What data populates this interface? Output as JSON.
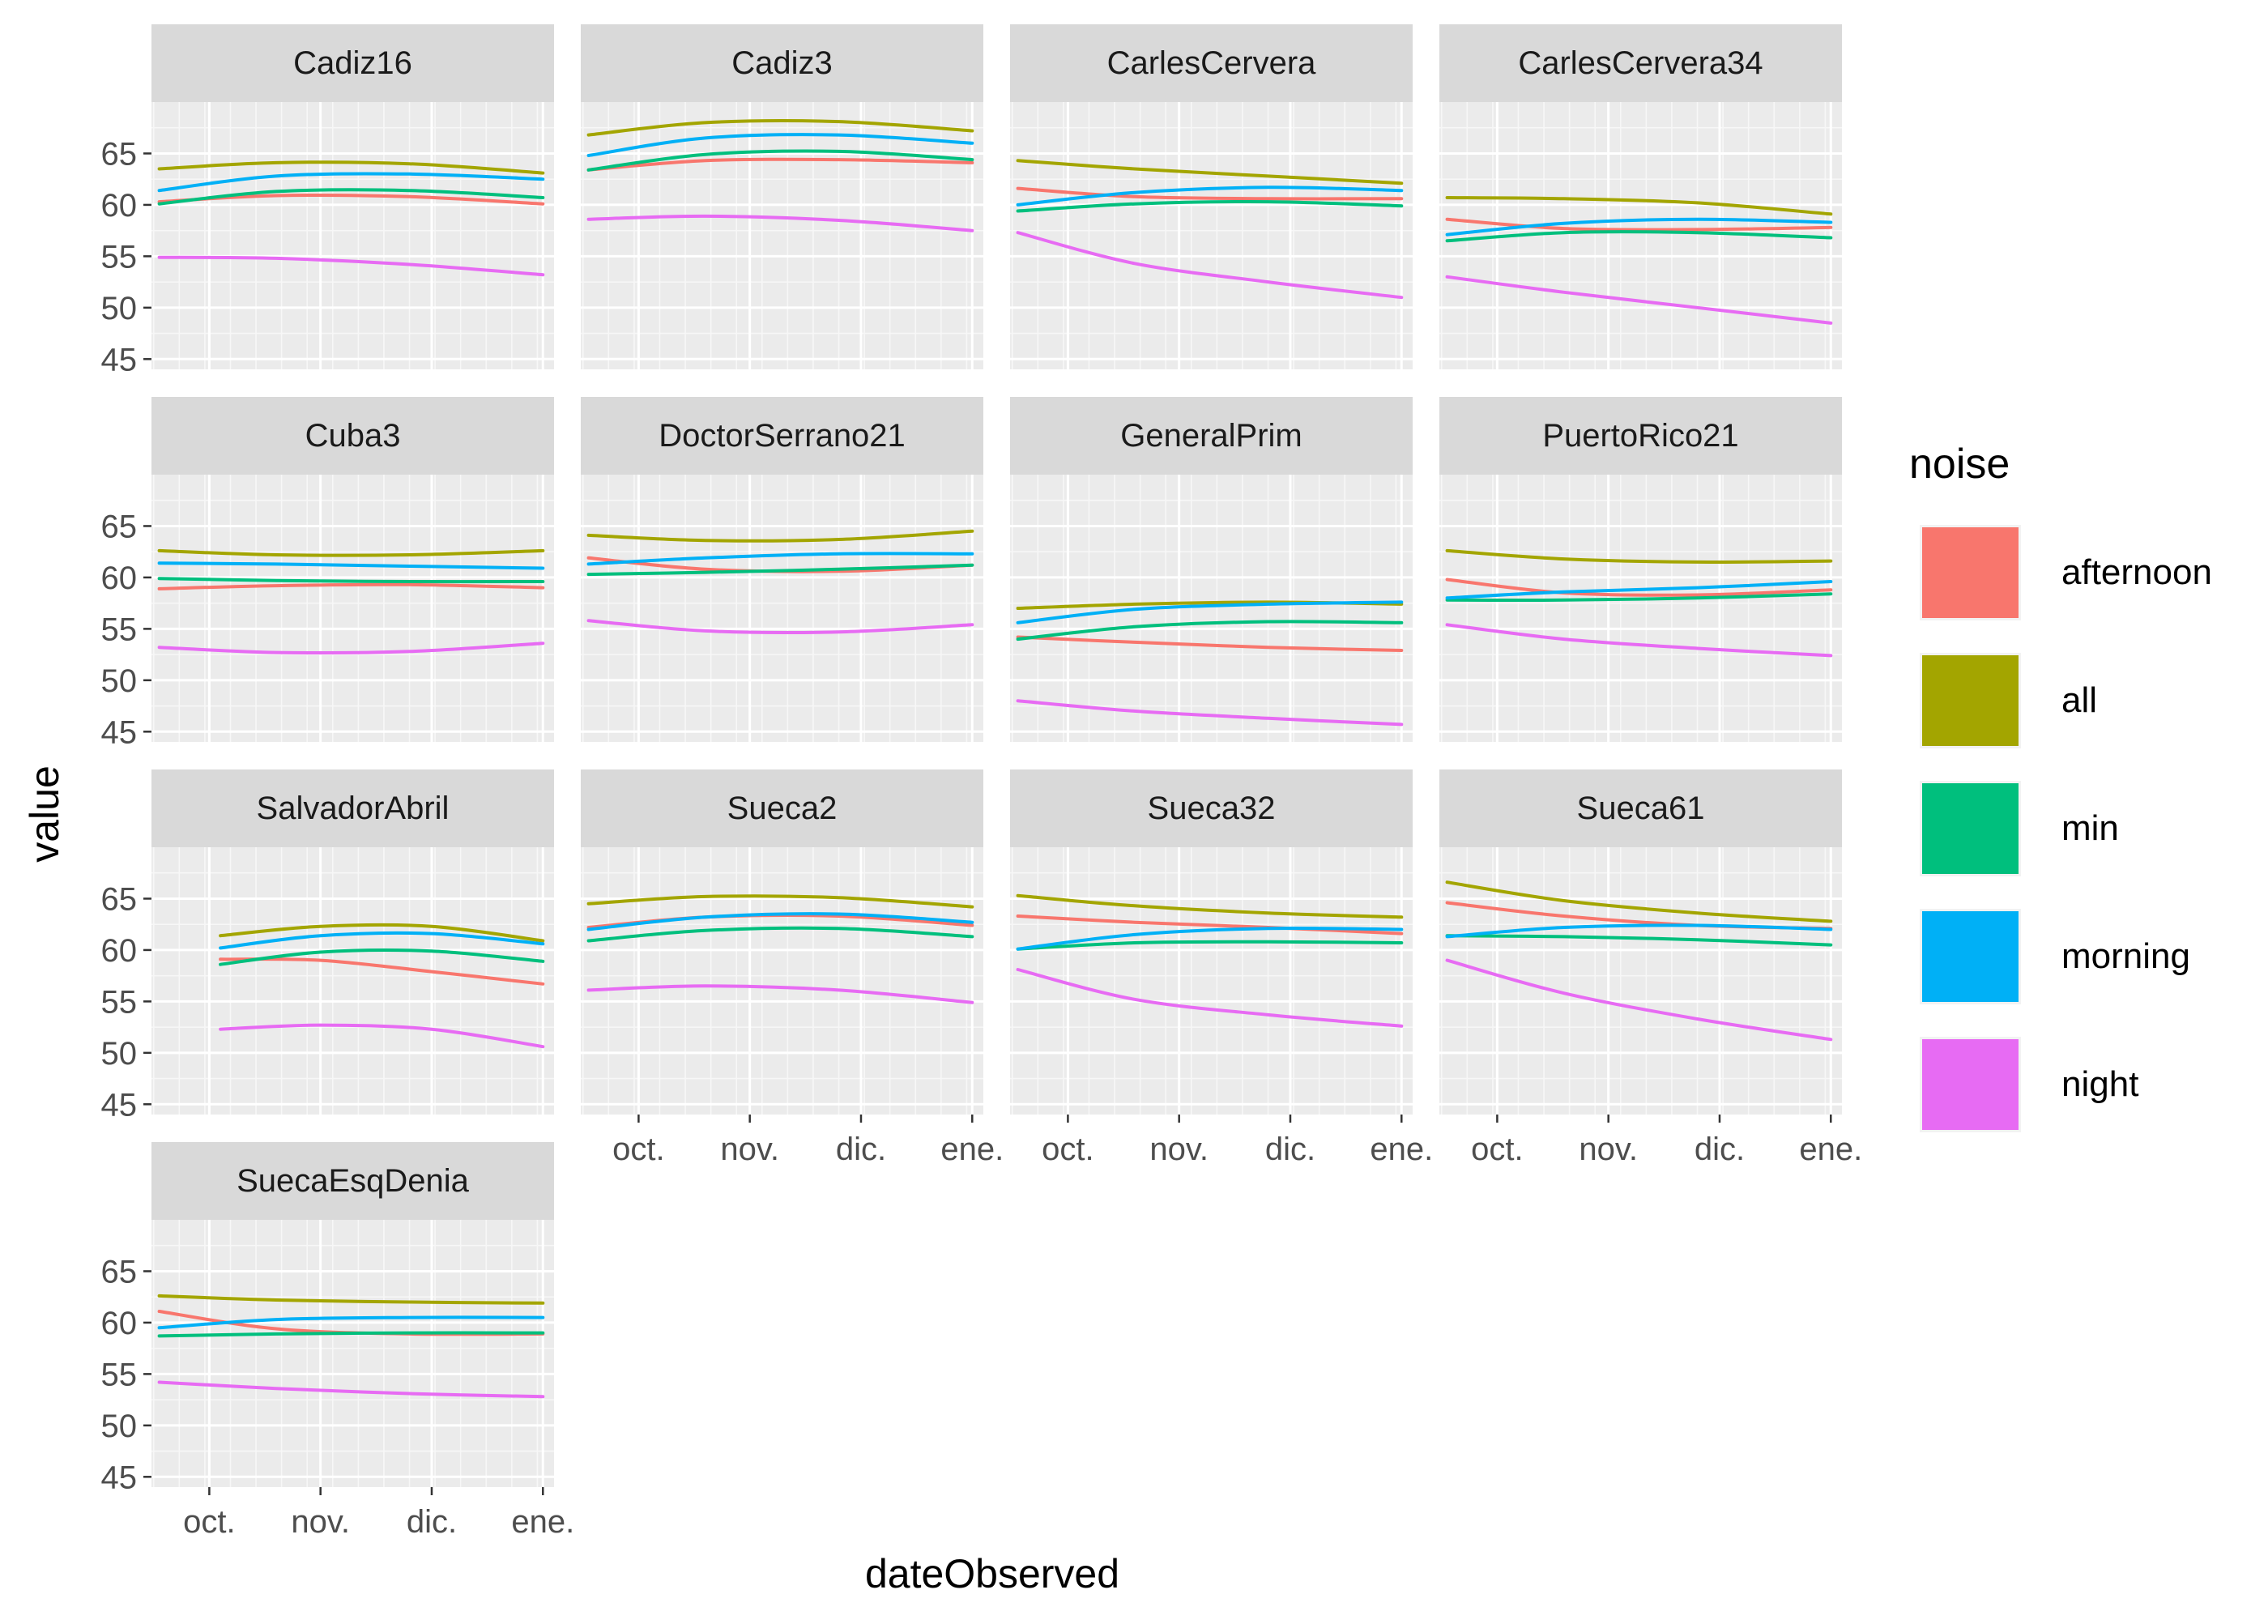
{
  "chart_data": {
    "type": "line",
    "facet_by": "station",
    "xlabel": "dateObserved",
    "ylabel": "value",
    "legend_title": "noise",
    "legend_position": "right",
    "grid": true,
    "x_ticks": [
      "oct.",
      "nov.",
      "dic.",
      "ene."
    ],
    "x_tick_positions": [
      1,
      2,
      3,
      4
    ],
    "xlim": [
      0.48,
      4.1
    ],
    "ylim": [
      44,
      70
    ],
    "y_ticks": [
      45,
      50,
      55,
      60,
      65
    ],
    "series_colors": {
      "afternoon": "#F8766D",
      "all": "#A3A500",
      "min": "#00BF7D",
      "morning": "#00B0F6",
      "night": "#E76BF3"
    },
    "series_order": [
      "afternoon",
      "all",
      "min",
      "morning",
      "night"
    ],
    "panels": [
      {
        "name": "Cadiz16",
        "x": [
          0.55,
          1.6,
          2.8,
          4.0
        ],
        "series": {
          "afternoon": [
            60.3,
            60.9,
            60.8,
            60.1
          ],
          "all": [
            63.5,
            64.1,
            64.0,
            63.1
          ],
          "min": [
            60.1,
            61.3,
            61.4,
            60.7
          ],
          "morning": [
            61.4,
            62.8,
            63.0,
            62.5
          ],
          "night": [
            54.9,
            54.8,
            54.2,
            53.2
          ]
        }
      },
      {
        "name": "Cadiz3",
        "x": [
          0.55,
          1.6,
          2.8,
          4.0
        ],
        "series": {
          "afternoon": [
            63.4,
            64.3,
            64.4,
            64.1
          ],
          "all": [
            66.8,
            68.0,
            68.1,
            67.2
          ],
          "min": [
            63.4,
            64.9,
            65.2,
            64.4
          ],
          "morning": [
            64.8,
            66.5,
            66.8,
            66.0
          ],
          "night": [
            58.6,
            58.9,
            58.5,
            57.5
          ]
        }
      },
      {
        "name": "CarlesCervera",
        "x": [
          0.55,
          1.6,
          2.8,
          4.0
        ],
        "series": {
          "afternoon": [
            61.6,
            60.8,
            60.6,
            60.6
          ],
          "all": [
            64.3,
            63.5,
            62.8,
            62.1
          ],
          "min": [
            59.4,
            60.1,
            60.3,
            59.9
          ],
          "morning": [
            60.0,
            61.2,
            61.7,
            61.4
          ],
          "night": [
            57.3,
            54.3,
            52.5,
            51.0
          ]
        }
      },
      {
        "name": "CarlesCervera34",
        "x": [
          0.55,
          1.6,
          2.8,
          4.0
        ],
        "series": {
          "afternoon": [
            58.6,
            57.7,
            57.6,
            57.8
          ],
          "all": [
            60.7,
            60.6,
            60.2,
            59.1
          ],
          "min": [
            56.5,
            57.3,
            57.3,
            56.8
          ],
          "morning": [
            57.1,
            58.2,
            58.6,
            58.3
          ],
          "night": [
            53.0,
            51.5,
            50.0,
            48.5
          ]
        }
      },
      {
        "name": "Cuba3",
        "x": [
          0.55,
          1.6,
          2.8,
          4.0
        ],
        "series": {
          "afternoon": [
            58.9,
            59.2,
            59.3,
            59.0
          ],
          "all": [
            62.6,
            62.2,
            62.2,
            62.6
          ],
          "min": [
            59.9,
            59.7,
            59.6,
            59.6
          ],
          "morning": [
            61.4,
            61.3,
            61.1,
            60.9
          ],
          "night": [
            53.2,
            52.7,
            52.8,
            53.6
          ]
        }
      },
      {
        "name": "DoctorSerrano21",
        "x": [
          0.55,
          1.6,
          2.8,
          4.0
        ],
        "series": {
          "afternoon": [
            61.9,
            60.8,
            60.6,
            61.2
          ],
          "all": [
            64.1,
            63.6,
            63.7,
            64.5
          ],
          "min": [
            60.3,
            60.5,
            60.8,
            61.2
          ],
          "morning": [
            61.3,
            61.9,
            62.3,
            62.3
          ],
          "night": [
            55.8,
            54.8,
            54.7,
            55.4
          ]
        }
      },
      {
        "name": "GeneralPrim",
        "x": [
          0.55,
          1.6,
          2.8,
          4.0
        ],
        "series": {
          "afternoon": [
            54.2,
            53.7,
            53.2,
            52.9
          ],
          "all": [
            57.0,
            57.4,
            57.6,
            57.4
          ],
          "min": [
            54.0,
            55.2,
            55.7,
            55.6
          ],
          "morning": [
            55.6,
            56.9,
            57.4,
            57.6
          ],
          "night": [
            48.0,
            47.0,
            46.3,
            45.7
          ]
        }
      },
      {
        "name": "PuertoRico21",
        "x": [
          0.55,
          1.6,
          2.8,
          4.0
        ],
        "series": {
          "afternoon": [
            59.8,
            58.5,
            58.3,
            58.8
          ],
          "all": [
            62.6,
            61.8,
            61.5,
            61.6
          ],
          "min": [
            57.8,
            57.8,
            58.0,
            58.4
          ],
          "morning": [
            58.0,
            58.6,
            59.0,
            59.6
          ],
          "night": [
            55.4,
            54.0,
            53.1,
            52.4
          ]
        }
      },
      {
        "name": "SalvadorAbril",
        "x": [
          1.1,
          2.0,
          3.0,
          4.0
        ],
        "series": {
          "afternoon": [
            59.1,
            59.0,
            57.9,
            56.7
          ],
          "all": [
            61.4,
            62.3,
            62.3,
            60.9
          ],
          "min": [
            58.6,
            59.8,
            59.9,
            58.9
          ],
          "morning": [
            60.2,
            61.4,
            61.6,
            60.6
          ],
          "night": [
            52.3,
            52.7,
            52.3,
            50.6
          ]
        }
      },
      {
        "name": "Sueca2",
        "x": [
          0.55,
          1.6,
          2.8,
          4.0
        ],
        "series": {
          "afternoon": [
            62.2,
            63.2,
            63.3,
            62.4
          ],
          "all": [
            64.5,
            65.2,
            65.1,
            64.2
          ],
          "min": [
            60.9,
            61.9,
            62.1,
            61.3
          ],
          "morning": [
            62.0,
            63.2,
            63.5,
            62.7
          ],
          "night": [
            56.1,
            56.5,
            56.1,
            54.9
          ]
        }
      },
      {
        "name": "Sueca32",
        "x": [
          0.55,
          1.6,
          2.8,
          4.0
        ],
        "series": {
          "afternoon": [
            63.3,
            62.7,
            62.2,
            61.6
          ],
          "all": [
            65.3,
            64.3,
            63.6,
            63.2
          ],
          "min": [
            60.1,
            60.7,
            60.8,
            60.7
          ],
          "morning": [
            60.1,
            61.5,
            62.1,
            62.0
          ],
          "night": [
            58.1,
            55.2,
            53.7,
            52.6
          ]
        }
      },
      {
        "name": "Sueca61",
        "x": [
          0.55,
          1.6,
          2.8,
          4.0
        ],
        "series": {
          "afternoon": [
            64.6,
            63.3,
            62.4,
            62.1
          ],
          "all": [
            66.6,
            64.8,
            63.6,
            62.8
          ],
          "min": [
            61.4,
            61.3,
            61.0,
            60.5
          ],
          "morning": [
            61.3,
            62.2,
            62.4,
            62.0
          ],
          "night": [
            59.0,
            55.8,
            53.3,
            51.3
          ]
        }
      },
      {
        "name": "SuecaEsqDenia",
        "x": [
          0.55,
          1.6,
          2.8,
          4.0
        ],
        "series": {
          "afternoon": [
            61.1,
            59.4,
            58.9,
            58.9
          ],
          "all": [
            62.6,
            62.2,
            62.0,
            61.9
          ],
          "min": [
            58.7,
            58.9,
            59.0,
            59.0
          ],
          "morning": [
            59.5,
            60.3,
            60.5,
            60.5
          ],
          "night": [
            54.2,
            53.6,
            53.1,
            52.8
          ]
        }
      }
    ]
  }
}
